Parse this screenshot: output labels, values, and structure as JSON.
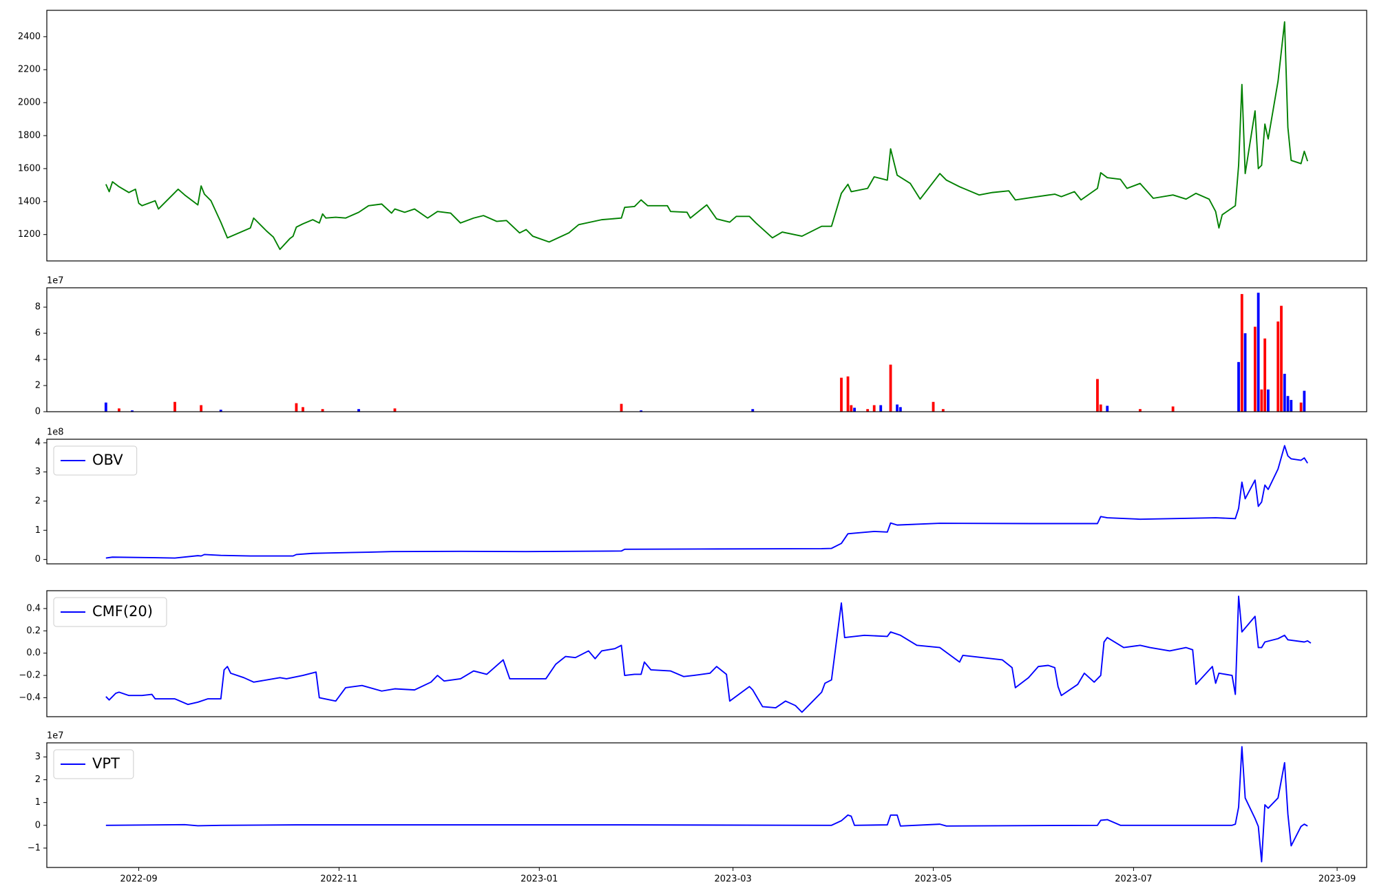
{
  "chart_data": [
    {
      "type": "line",
      "xlim": [
        "2022-08-04",
        "2023-09-10"
      ],
      "ylim": [
        1040,
        2560
      ],
      "yticks": [
        1200,
        1400,
        1600,
        1800,
        2000,
        2200,
        2400
      ],
      "x": [
        "2022-08-22",
        "2022-08-23",
        "2022-08-24",
        "2022-08-26",
        "2022-08-29",
        "2022-08-31",
        "2022-09-01",
        "2022-09-02",
        "2022-09-06",
        "2022-09-07",
        "2022-09-13",
        "2022-09-15",
        "2022-09-19",
        "2022-09-20",
        "2022-09-21",
        "2022-09-23",
        "2022-09-26",
        "2022-09-28",
        "2022-10-05",
        "2022-10-06",
        "2022-10-10",
        "2022-10-12",
        "2022-10-14",
        "2022-10-17",
        "2022-10-18",
        "2022-10-19",
        "2022-10-21",
        "2022-10-24",
        "2022-10-26",
        "2022-10-27",
        "2022-10-28",
        "2022-10-31",
        "2022-11-03",
        "2022-11-07",
        "2022-11-10",
        "2022-11-14",
        "2022-11-17",
        "2022-11-18",
        "2022-11-21",
        "2022-11-24",
        "2022-11-28",
        "2022-12-01",
        "2022-12-05",
        "2022-12-08",
        "2022-12-12",
        "2022-12-15",
        "2022-12-19",
        "2022-12-22",
        "2022-12-26",
        "2022-12-28",
        "2022-12-30",
        "2023-01-04",
        "2023-01-10",
        "2023-01-13",
        "2023-01-20",
        "2023-01-26",
        "2023-01-27",
        "2023-01-30",
        "2023-02-01",
        "2023-02-03",
        "2023-02-09",
        "2023-02-10",
        "2023-02-15",
        "2023-02-16",
        "2023-02-21",
        "2023-02-24",
        "2023-02-28",
        "2023-03-02",
        "2023-03-06",
        "2023-03-08",
        "2023-03-13",
        "2023-03-16",
        "2023-03-22",
        "2023-03-28",
        "2023-03-31",
        "2023-04-03",
        "2023-04-05",
        "2023-04-06",
        "2023-04-11",
        "2023-04-13",
        "2023-04-17",
        "2023-04-18",
        "2023-04-20",
        "2023-04-24",
        "2023-04-27",
        "2023-05-03",
        "2023-05-05",
        "2023-05-09",
        "2023-05-15",
        "2023-05-19",
        "2023-05-24",
        "2023-05-26",
        "2023-05-31",
        "2023-06-07",
        "2023-06-09",
        "2023-06-13",
        "2023-06-15",
        "2023-06-20",
        "2023-06-21",
        "2023-06-23",
        "2023-06-27",
        "2023-06-29",
        "2023-07-03",
        "2023-07-07",
        "2023-07-13",
        "2023-07-17",
        "2023-07-20",
        "2023-07-24",
        "2023-07-26",
        "2023-07-27",
        "2023-07-28",
        "2023-08-01",
        "2023-08-02",
        "2023-08-03",
        "2023-08-04",
        "2023-08-07",
        "2023-08-08",
        "2023-08-09",
        "2023-08-10",
        "2023-08-11",
        "2023-08-14",
        "2023-08-16",
        "2023-08-17",
        "2023-08-18",
        "2023-08-21",
        "2023-08-22",
        "2023-08-23"
      ],
      "series": [
        {
          "color": "#008000",
          "values": [
            1505,
            1460,
            1520,
            1490,
            1455,
            1475,
            1390,
            1375,
            1405,
            1355,
            1475,
            1440,
            1380,
            1495,
            1445,
            1405,
            1275,
            1180,
            1240,
            1300,
            1220,
            1185,
            1110,
            1175,
            1190,
            1245,
            1265,
            1290,
            1270,
            1325,
            1300,
            1305,
            1300,
            1335,
            1375,
            1385,
            1330,
            1355,
            1335,
            1355,
            1300,
            1340,
            1330,
            1270,
            1300,
            1315,
            1280,
            1285,
            1210,
            1230,
            1190,
            1155,
            1210,
            1260,
            1290,
            1300,
            1365,
            1370,
            1410,
            1375,
            1375,
            1340,
            1335,
            1300,
            1380,
            1295,
            1275,
            1310,
            1310,
            1270,
            1180,
            1215,
            1190,
            1250,
            1250,
            1450,
            1505,
            1460,
            1480,
            1550,
            1530,
            1720,
            1560,
            1510,
            1415,
            1570,
            1530,
            1490,
            1440,
            1455,
            1465,
            1410,
            1425,
            1445,
            1430,
            1460,
            1410,
            1480,
            1575,
            1545,
            1535,
            1480,
            1510,
            1420,
            1440,
            1415,
            1450,
            1415,
            1340,
            1240,
            1320,
            1375,
            1620,
            2110,
            1570,
            1950,
            1600,
            1620,
            1870,
            1780,
            2130,
            2490,
            1850,
            1650,
            1630,
            1705,
            1645
          ]
        }
      ]
    },
    {
      "type": "bar",
      "xlim": [
        "2022-08-04",
        "2023-09-10"
      ],
      "ylim": [
        0,
        9.48
      ],
      "yticks": [
        0,
        2,
        4,
        6,
        8
      ],
      "offset_label": "1e7",
      "x": [
        "2022-08-22",
        "2022-08-26",
        "2022-08-30",
        "2022-09-12",
        "2022-09-20",
        "2022-09-26",
        "2022-10-19",
        "2022-10-21",
        "2022-10-27",
        "2022-11-07",
        "2022-11-18",
        "2023-01-26",
        "2023-02-01",
        "2023-03-07",
        "2023-04-03",
        "2023-04-05",
        "2023-04-06",
        "2023-04-07",
        "2023-04-11",
        "2023-04-13",
        "2023-04-15",
        "2023-04-18",
        "2023-04-20",
        "2023-04-21",
        "2023-05-01",
        "2023-05-04",
        "2023-06-20",
        "2023-06-21",
        "2023-06-23",
        "2023-07-03",
        "2023-07-13",
        "2023-08-02",
        "2023-08-03",
        "2023-08-04",
        "2023-08-07",
        "2023-08-08",
        "2023-08-09",
        "2023-08-10",
        "2023-08-11",
        "2023-08-14",
        "2023-08-15",
        "2023-08-16",
        "2023-08-17",
        "2023-08-18",
        "2023-08-21",
        "2023-08-22"
      ],
      "values": [
        0.7,
        0.25,
        0.1,
        0.75,
        0.5,
        0.15,
        0.65,
        0.35,
        0.2,
        0.2,
        0.25,
        0.6,
        0.1,
        0.2,
        2.6,
        2.7,
        0.5,
        0.3,
        0.2,
        0.5,
        0.5,
        3.6,
        0.55,
        0.35,
        0.75,
        0.2,
        2.5,
        0.55,
        0.45,
        0.2,
        0.4,
        3.8,
        9.0,
        6.0,
        6.5,
        9.1,
        1.7,
        5.6,
        1.7,
        6.9,
        8.1,
        2.9,
        1.2,
        0.9,
        0.7,
        1.6
      ],
      "colors": [
        "#0000ff",
        "#ff0000",
        "#0000ff",
        "#ff0000",
        "#ff0000",
        "#0000ff",
        "#ff0000",
        "#ff0000",
        "#ff0000",
        "#0000ff",
        "#ff0000",
        "#ff0000",
        "#0000ff",
        "#0000ff",
        "#ff0000",
        "#ff0000",
        "#ff0000",
        "#0000ff",
        "#ff0000",
        "#ff0000",
        "#0000ff",
        "#ff0000",
        "#0000ff",
        "#0000ff",
        "#ff0000",
        "#ff0000",
        "#ff0000",
        "#ff0000",
        "#0000ff",
        "#ff0000",
        "#ff0000",
        "#0000ff",
        "#ff0000",
        "#0000ff",
        "#ff0000",
        "#0000ff",
        "#ff0000",
        "#ff0000",
        "#0000ff",
        "#ff0000",
        "#ff0000",
        "#0000ff",
        "#0000ff",
        "#0000ff",
        "#ff0000",
        "#0000ff"
      ]
    },
    {
      "type": "line",
      "xlim": [
        "2022-08-04",
        "2023-09-10"
      ],
      "ylim": [
        -0.15,
        4.12
      ],
      "yticks": [
        0,
        1,
        2,
        3,
        4
      ],
      "offset_label": "1e8",
      "legend": "upper left",
      "x": [
        "2022-08-22",
        "2022-08-24",
        "2022-09-06",
        "2022-09-12",
        "2022-09-19",
        "2022-09-20",
        "2022-09-21",
        "2022-09-26",
        "2022-10-05",
        "2022-10-18",
        "2022-10-19",
        "2022-10-24",
        "2022-10-28",
        "2022-11-10",
        "2022-11-17",
        "2022-12-08",
        "2022-12-28",
        "2023-01-26",
        "2023-01-27",
        "2023-02-24",
        "2023-03-28",
        "2023-03-31",
        "2023-04-03",
        "2023-04-05",
        "2023-04-07",
        "2023-04-13",
        "2023-04-17",
        "2023-04-18",
        "2023-04-20",
        "2023-05-03",
        "2023-05-31",
        "2023-06-20",
        "2023-06-21",
        "2023-06-23",
        "2023-07-03",
        "2023-07-26",
        "2023-08-01",
        "2023-08-02",
        "2023-08-03",
        "2023-08-04",
        "2023-08-07",
        "2023-08-08",
        "2023-08-09",
        "2023-08-10",
        "2023-08-11",
        "2023-08-14",
        "2023-08-16",
        "2023-08-17",
        "2023-08-18",
        "2023-08-21",
        "2023-08-22",
        "2023-08-23"
      ],
      "series": [
        {
          "name": "OBV",
          "color": "#0000ff",
          "values": [
            0.05,
            0.08,
            0.06,
            0.05,
            0.13,
            0.12,
            0.17,
            0.14,
            0.12,
            0.12,
            0.17,
            0.21,
            0.22,
            0.25,
            0.27,
            0.28,
            0.27,
            0.29,
            0.35,
            0.36,
            0.37,
            0.38,
            0.55,
            0.88,
            0.9,
            0.96,
            0.94,
            1.25,
            1.18,
            1.24,
            1.23,
            1.23,
            1.47,
            1.43,
            1.38,
            1.43,
            1.4,
            1.75,
            2.65,
            2.08,
            2.72,
            1.82,
            1.97,
            2.55,
            2.4,
            3.1,
            3.9,
            3.55,
            3.45,
            3.4,
            3.48,
            3.3
          ]
        }
      ]
    },
    {
      "type": "line",
      "xlim": [
        "2022-08-04",
        "2023-09-10"
      ],
      "ylim": [
        -0.57,
        0.56
      ],
      "yticks": [
        {
          "value": -0.4,
          "label": "−0.4"
        },
        {
          "value": -0.2,
          "label": "−0.2"
        },
        {
          "value": 0,
          "label": "0.0"
        },
        0.2,
        0.4
      ],
      "legend": "upper left",
      "x": [
        "2022-08-22",
        "2022-08-23",
        "2022-08-25",
        "2022-08-26",
        "2022-08-29",
        "2022-09-02",
        "2022-09-05",
        "2022-09-06",
        "2022-09-12",
        "2022-09-16",
        "2022-09-19",
        "2022-09-22",
        "2022-09-26",
        "2022-09-27",
        "2022-09-28",
        "2022-09-29",
        "2022-10-03",
        "2022-10-06",
        "2022-10-14",
        "2022-10-16",
        "2022-10-21",
        "2022-10-25",
        "2022-10-26",
        "2022-10-31",
        "2022-11-03",
        "2022-11-08",
        "2022-11-14",
        "2022-11-18",
        "2022-11-24",
        "2022-11-29",
        "2022-12-01",
        "2022-12-03",
        "2022-12-08",
        "2022-12-12",
        "2022-12-16",
        "2022-12-21",
        "2022-12-23",
        "2023-01-03",
        "2023-01-06",
        "2023-01-09",
        "2023-01-12",
        "2023-01-16",
        "2023-01-18",
        "2023-01-20",
        "2023-01-24",
        "2023-01-26",
        "2023-01-27",
        "2023-01-30",
        "2023-02-01",
        "2023-02-02",
        "2023-02-04",
        "2023-02-10",
        "2023-02-14",
        "2023-02-17",
        "2023-02-22",
        "2023-02-24",
        "2023-02-27",
        "2023-02-28",
        "2023-03-06",
        "2023-03-07",
        "2023-03-10",
        "2023-03-14",
        "2023-03-17",
        "2023-03-20",
        "2023-03-22",
        "2023-03-25",
        "2023-03-28",
        "2023-03-29",
        "2023-03-31",
        "2023-04-03",
        "2023-04-04",
        "2023-04-10",
        "2023-04-17",
        "2023-04-18",
        "2023-04-21",
        "2023-04-26",
        "2023-05-03",
        "2023-05-09",
        "2023-05-10",
        "2023-05-22",
        "2023-05-25",
        "2023-05-26",
        "2023-05-30",
        "2023-06-02",
        "2023-06-05",
        "2023-06-07",
        "2023-06-08",
        "2023-06-09",
        "2023-06-14",
        "2023-06-16",
        "2023-06-19",
        "2023-06-21",
        "2023-06-22",
        "2023-06-23",
        "2023-06-28",
        "2023-07-03",
        "2023-07-06",
        "2023-07-12",
        "2023-07-17",
        "2023-07-19",
        "2023-07-20",
        "2023-07-25",
        "2023-07-26",
        "2023-07-27",
        "2023-07-31",
        "2023-08-01",
        "2023-08-02",
        "2023-08-03",
        "2023-08-07",
        "2023-08-08",
        "2023-08-09",
        "2023-08-10",
        "2023-08-14",
        "2023-08-16",
        "2023-08-17",
        "2023-08-22",
        "2023-08-23",
        "2023-08-24"
      ],
      "series": [
        {
          "name": "CMF(20)",
          "color": "#0000ff",
          "values": [
            -0.39,
            -0.42,
            -0.36,
            -0.35,
            -0.38,
            -0.38,
            -0.37,
            -0.41,
            -0.41,
            -0.46,
            -0.44,
            -0.41,
            -0.41,
            -0.15,
            -0.12,
            -0.18,
            -0.22,
            -0.26,
            -0.22,
            -0.23,
            -0.2,
            -0.17,
            -0.4,
            -0.43,
            -0.31,
            -0.29,
            -0.34,
            -0.32,
            -0.33,
            -0.26,
            -0.2,
            -0.25,
            -0.23,
            -0.16,
            -0.19,
            -0.06,
            -0.23,
            -0.23,
            -0.1,
            -0.03,
            -0.04,
            0.02,
            -0.05,
            0.02,
            0.04,
            0.07,
            -0.2,
            -0.19,
            -0.19,
            -0.08,
            -0.15,
            -0.16,
            -0.21,
            -0.2,
            -0.18,
            -0.12,
            -0.19,
            -0.43,
            -0.3,
            -0.33,
            -0.48,
            -0.49,
            -0.43,
            -0.47,
            -0.53,
            -0.44,
            -0.35,
            -0.27,
            -0.24,
            0.45,
            0.14,
            0.16,
            0.15,
            0.19,
            0.16,
            0.07,
            0.05,
            -0.08,
            -0.02,
            -0.06,
            -0.13,
            -0.31,
            -0.22,
            -0.12,
            -0.11,
            -0.13,
            -0.3,
            -0.38,
            -0.28,
            -0.18,
            -0.26,
            -0.2,
            0.1,
            0.14,
            0.05,
            0.07,
            0.05,
            0.02,
            0.05,
            0.03,
            -0.28,
            -0.12,
            -0.27,
            -0.18,
            -0.2,
            -0.37,
            0.51,
            0.19,
            0.33,
            0.05,
            0.05,
            0.1,
            0.13,
            0.16,
            0.12,
            0.1,
            0.11,
            0.09
          ]
        }
      ]
    },
    {
      "type": "line",
      "xlim": [
        "2022-08-04",
        "2023-09-10"
      ],
      "ylim": [
        -1.85,
        3.62
      ],
      "yticks": [
        {
          "value": -1,
          "label": "−1"
        },
        0,
        1,
        2,
        3
      ],
      "offset_label": "1e7",
      "legend": "upper left",
      "xticks": [
        {
          "value": "2022-09-01",
          "label": "2022-09"
        },
        {
          "value": "2022-11-01",
          "label": "2022-11"
        },
        {
          "value": "2023-01-01",
          "label": "2023-01"
        },
        {
          "value": "2023-03-01",
          "label": "2023-03"
        },
        {
          "value": "2023-05-01",
          "label": "2023-05"
        },
        {
          "value": "2023-07-01",
          "label": "2023-07"
        },
        {
          "value": "2023-09-01",
          "label": "2023-09"
        }
      ],
      "x": [
        "2022-08-22",
        "2022-09-15",
        "2022-09-19",
        "2022-09-26",
        "2022-10-19",
        "2023-01-26",
        "2023-03-31",
        "2023-04-03",
        "2023-04-05",
        "2023-04-06",
        "2023-04-07",
        "2023-04-17",
        "2023-04-18",
        "2023-04-20",
        "2023-04-21",
        "2023-05-03",
        "2023-05-05",
        "2023-06-20",
        "2023-06-21",
        "2023-06-23",
        "2023-06-27",
        "2023-07-31",
        "2023-08-01",
        "2023-08-02",
        "2023-08-03",
        "2023-08-04",
        "2023-08-07",
        "2023-08-08",
        "2023-08-09",
        "2023-08-10",
        "2023-08-11",
        "2023-08-14",
        "2023-08-16",
        "2023-08-17",
        "2023-08-18",
        "2023-08-21",
        "2023-08-22",
        "2023-08-23"
      ],
      "series": [
        {
          "name": "VPT",
          "color": "#0000ff",
          "values": [
            0,
            0.03,
            -0.02,
            0,
            0.02,
            0.02,
            0,
            0.2,
            0.45,
            0.4,
            0,
            0.02,
            0.45,
            0.45,
            -0.03,
            0.05,
            -0.03,
            0,
            0.22,
            0.25,
            0,
            0,
            0.05,
            0.8,
            3.45,
            1.2,
            0.3,
            -0.05,
            -1.6,
            0.9,
            0.75,
            1.2,
            2.75,
            0.5,
            -0.9,
            -0.05,
            0.05,
            -0.03
          ]
        }
      ]
    }
  ]
}
